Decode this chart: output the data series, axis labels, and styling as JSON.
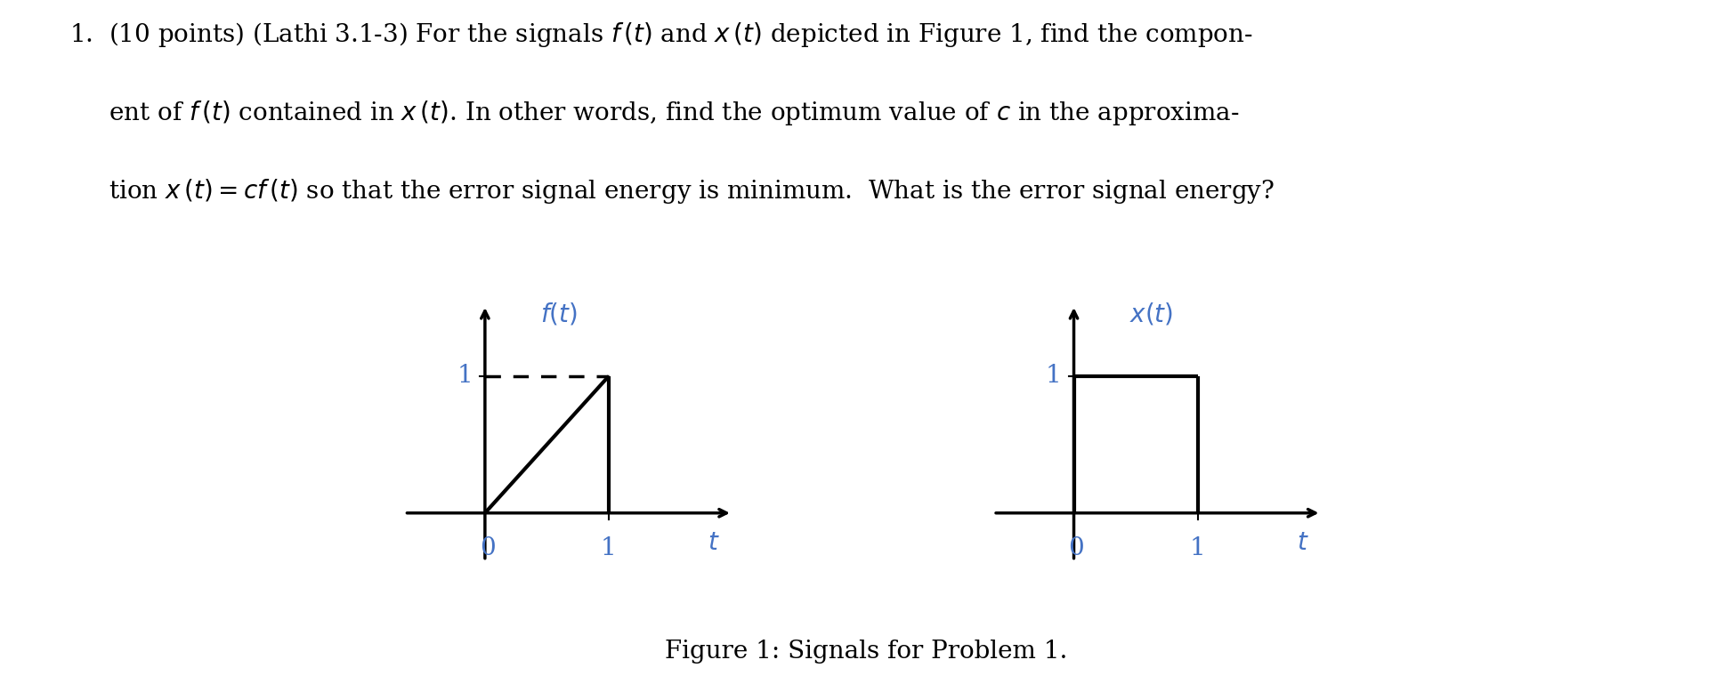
{
  "background_color": "#ffffff",
  "fig_width": 19.46,
  "fig_height": 7.69,
  "title_line1": "1.  (10 points) (Lathi 3.1-3) For the signals $f\\,(t)$ and $x\\,(t)$ depicted in Figure 1, find the compon-",
  "title_line2": "     ent of $f\\,(t)$ contained in $x\\,(t)$. In other words, find the optimum value of $c$ in the approxima-",
  "title_line3": "     tion $x\\,(t) = cf\\,(t)$ so that the error signal energy is minimum.  What is the error signal energy?",
  "caption": "Figure 1: Signals for Problem 1.",
  "f_label": "$f(t)$",
  "x_label": "$x(t)$",
  "t_label": "$t$",
  "zero_label": "0",
  "one_label": "1",
  "label_color": "#4472c4",
  "axis_color": "#000000",
  "signal_color": "#000000",
  "dashed_color": "#000000",
  "label_fontsize": 20,
  "tick_fontsize": 20,
  "caption_fontsize": 20,
  "title_fontsize": 20
}
